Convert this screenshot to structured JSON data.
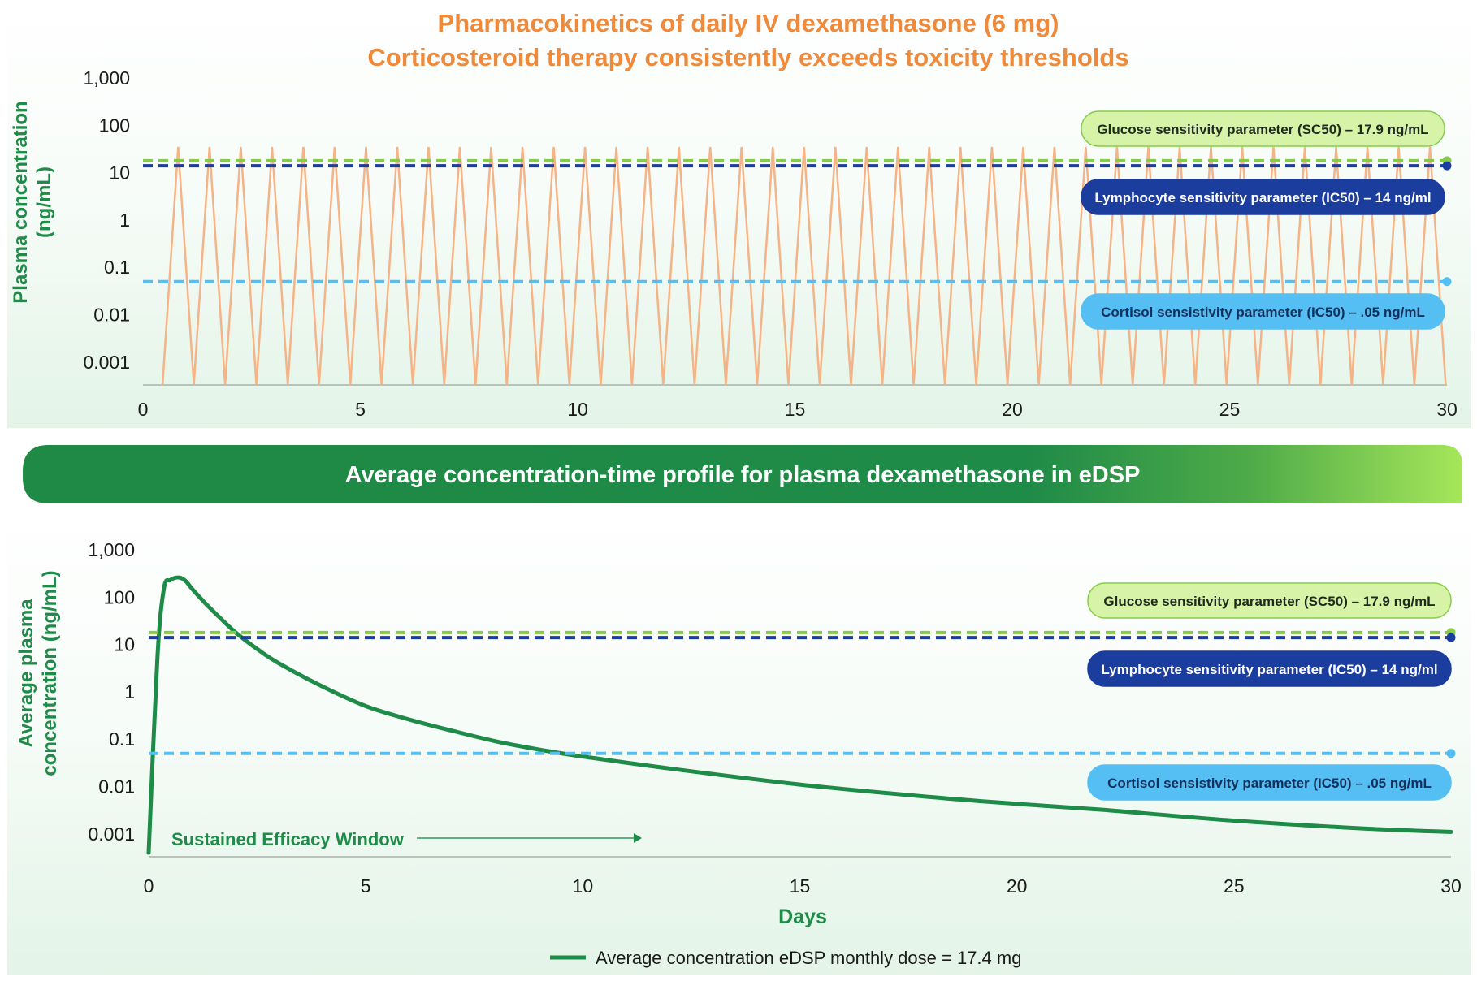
{
  "colors": {
    "orange": "#ee8a3c",
    "dose_line": "#f5b386",
    "green": "#1f8b48",
    "glucose": "#86cc4a",
    "glucose_fill": "#d6f3a8",
    "lymphocyte": "#1b3d9e",
    "cortisol": "#55bff3"
  },
  "chart_data": [
    {
      "type": "line",
      "title": "Pharmacokinetics of daily IV dexamethasone (6 mg)",
      "subtitle": "Corticosteroid therapy consistently exceeds toxicity thresholds",
      "xlabel": "",
      "ylabel": "Plasma concentration (ng/mL)",
      "ylabel_lines": [
        "Plasma concentration",
        "(ng/mL)"
      ],
      "yscale": "log",
      "xlim": [
        0,
        30
      ],
      "ylim": [
        0.0003,
        1000
      ],
      "x_ticks": [
        "0",
        "5",
        "10",
        "15",
        "20",
        "25",
        "30"
      ],
      "y_ticks": [
        "1,000",
        "100",
        "10",
        "1",
        "0.1",
        "0.01",
        "0.001"
      ],
      "grid": false,
      "series": [
        {
          "color": "#f5b386",
          "peak_value": 35,
          "trough_value": 0.0003,
          "peaks_x": [
            0.81,
            1.53,
            2.25,
            2.97,
            3.69,
            4.41,
            5.13,
            5.85,
            6.57,
            7.29,
            8.01,
            8.73,
            9.45,
            10.17,
            10.89,
            11.61,
            12.33,
            13.05,
            13.77,
            14.49,
            15.21,
            15.93,
            16.65,
            17.37,
            18.09,
            18.81,
            19.53,
            20.25,
            20.97,
            21.69,
            22.41,
            23.13,
            23.85,
            24.57,
            25.29,
            26.01,
            26.73,
            27.45,
            28.17,
            28.89,
            29.61
          ],
          "troughs_x": [
            0.45,
            1.17,
            1.89,
            2.61,
            3.33,
            4.05,
            4.77,
            5.49,
            6.21,
            6.93,
            7.65,
            8.37,
            9.09,
            9.81,
            10.53,
            11.25,
            11.97,
            12.69,
            13.41,
            14.13,
            14.85,
            15.57,
            16.29,
            17.01,
            17.73,
            18.45,
            19.17,
            19.89,
            20.61,
            21.33,
            22.05,
            22.77,
            23.49,
            24.21,
            24.93,
            25.65,
            26.37,
            27.09,
            27.81,
            28.53,
            29.25,
            29.97
          ]
        }
      ],
      "thresholds": [
        {
          "label": "Glucose sensitivity parameter (SC50) – 17.9 ng/mL",
          "value": 17.9,
          "color": "#86cc4a"
        },
        {
          "label": "Lymphocyte sensitivity parameter (IC50) – 14 ng/ml",
          "value": 14,
          "color": "#1b3d9e"
        },
        {
          "label": "Cortisol sensistivity parameter (IC50) – .05 ng/mL",
          "value": 0.05,
          "color": "#55bff3"
        }
      ]
    },
    {
      "type": "line",
      "title": "Average concentration-time profile for plasma dexamethasone in eDSP",
      "xlabel": "Days",
      "ylabel": "Average plasma concentration (ng/mL)",
      "ylabel_lines": [
        "Average plasma",
        "concentration (ng/mL)"
      ],
      "yscale": "log",
      "xlim": [
        0,
        30
      ],
      "ylim": [
        0.0003,
        1000
      ],
      "x_ticks": [
        "0",
        "5",
        "10",
        "15",
        "20",
        "25",
        "30"
      ],
      "y_ticks": [
        "1,000",
        "100",
        "10",
        "1",
        "0.1",
        "0.01",
        "0.001"
      ],
      "grid": false,
      "legend_position": "bottom",
      "annotation": "Sustained Efficacy Window",
      "series": [
        {
          "name": "Average concentration eDSP monthly dose = 17.4 mg",
          "color": "#1f8b48",
          "x": [
            0,
            0.2,
            0.35,
            0.5,
            0.7,
            0.85,
            1.0,
            1.3,
            1.6,
            2.0,
            2.5,
            3.0,
            4.0,
            5.0,
            6.0,
            7.0,
            8.0,
            9.0,
            10.0,
            12.0,
            15.0,
            18.0,
            20.0,
            22.0,
            25.0,
            28.0,
            30.0
          ],
          "y": [
            0.0004,
            5,
            150,
            230,
            260,
            220,
            150,
            75,
            40,
            18,
            8,
            4,
            1.3,
            0.5,
            0.26,
            0.15,
            0.09,
            0.06,
            0.043,
            0.024,
            0.011,
            0.006,
            0.0043,
            0.0032,
            0.0019,
            0.0013,
            0.0011
          ]
        }
      ],
      "thresholds": [
        {
          "label": "Glucose sensitivity parameter (SC50) – 17.9 ng/mL",
          "value": 17.9,
          "color": "#86cc4a"
        },
        {
          "label": "Lymphocyte sensitivity parameter (IC50) – 14 ng/ml",
          "value": 14,
          "color": "#1b3d9e"
        },
        {
          "label": "Cortisol sensistivity parameter (IC50) – .05 ng/mL",
          "value": 0.05,
          "color": "#55bff3"
        }
      ]
    }
  ]
}
